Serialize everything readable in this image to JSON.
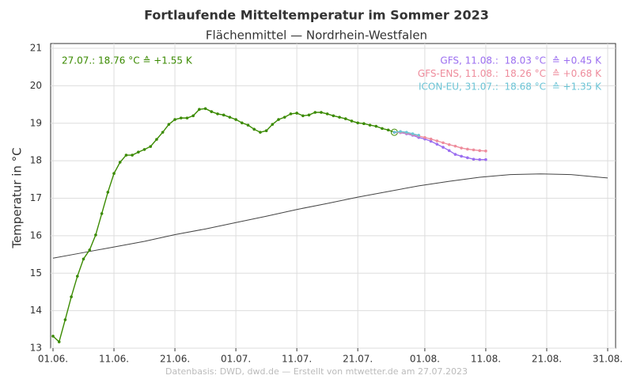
{
  "chart_data": {
    "type": "line",
    "title": "Fortlaufende Mitteltemperatur im Sommer 2023",
    "subtitle": "Flächenmittel — Nordrhein-Westfalen",
    "y_label": "Temperatur in °C",
    "footer": "Datenbasis: DWD, dwd.de — Erstellt von mtwetter.de am 27.07.2023",
    "xlim": [
      "01.06.",
      "31.08."
    ],
    "xticks": [
      "01.06.",
      "11.06.",
      "21.06.",
      "01.07.",
      "11.07.",
      "21.07.",
      "01.08.",
      "11.08.",
      "21.08.",
      "31.08."
    ],
    "ylim": [
      13,
      21
    ],
    "yticks": [
      13,
      14,
      15,
      16,
      17,
      18,
      19,
      20,
      21
    ],
    "grid": true,
    "series": [
      {
        "color": "#444444",
        "marker": false,
        "x": [
          "01.06.",
          "06.06.",
          "11.06.",
          "16.06.",
          "21.06.",
          "26.06.",
          "01.07.",
          "06.07.",
          "11.07.",
          "16.07.",
          "21.07.",
          "26.07.",
          "31.07.",
          "05.08.",
          "10.08.",
          "15.08.",
          "20.08.",
          "25.08.",
          "31.08."
        ],
        "values": [
          15.4,
          15.55,
          15.7,
          15.85,
          16.03,
          16.18,
          16.35,
          16.52,
          16.7,
          16.86,
          17.03,
          17.18,
          17.33,
          17.45,
          17.56,
          17.63,
          17.65,
          17.63,
          17.54
        ]
      },
      {
        "name": "27.07.: 18.76 °C ≙ +1.55 K",
        "color": "#3a8a00",
        "marker": true,
        "legend": "left",
        "x": [
          "01.06.",
          "02.06.",
          "03.06.",
          "04.06.",
          "05.06.",
          "06.06.",
          "07.06.",
          "08.06.",
          "09.06.",
          "10.06.",
          "11.06.",
          "12.06.",
          "13.06.",
          "14.06.",
          "15.06.",
          "16.06.",
          "17.06.",
          "18.06.",
          "19.06.",
          "20.06.",
          "21.06.",
          "22.06.",
          "23.06.",
          "24.06.",
          "25.06.",
          "26.06.",
          "27.06.",
          "28.06.",
          "29.06.",
          "30.06.",
          "01.07.",
          "02.07.",
          "03.07.",
          "04.07.",
          "05.07.",
          "06.07.",
          "07.07.",
          "08.07.",
          "09.07.",
          "10.07.",
          "11.07.",
          "12.07.",
          "13.07.",
          "14.07.",
          "15.07.",
          "16.07.",
          "17.07.",
          "18.07.",
          "19.07.",
          "20.07.",
          "21.07.",
          "22.07.",
          "23.07.",
          "24.07.",
          "25.07.",
          "26.07.",
          "27.07."
        ],
        "values": [
          13.32,
          13.17,
          13.76,
          14.37,
          14.92,
          15.38,
          15.62,
          16.02,
          16.59,
          17.16,
          17.66,
          17.96,
          18.15,
          18.15,
          18.23,
          18.3,
          18.38,
          18.57,
          18.76,
          18.97,
          19.1,
          19.14,
          19.14,
          19.2,
          19.37,
          19.39,
          19.31,
          19.25,
          19.22,
          19.16,
          19.1,
          19.01,
          18.95,
          18.84,
          18.76,
          18.8,
          18.97,
          19.1,
          19.16,
          19.25,
          19.27,
          19.2,
          19.22,
          19.29,
          19.29,
          19.25,
          19.2,
          19.16,
          19.12,
          19.06,
          19.01,
          18.99,
          18.95,
          18.92,
          18.86,
          18.82,
          18.76
        ]
      },
      {
        "name": "GFS, 11.08.:  18.03 °C  ≙ +0.45 K",
        "color": "#9b6ef0",
        "marker": true,
        "legend": "right",
        "x": [
          "27.07.",
          "28.07.",
          "29.07.",
          "30.07.",
          "31.07.",
          "01.08.",
          "02.08.",
          "03.08.",
          "04.08.",
          "05.08.",
          "06.08.",
          "07.08.",
          "08.08.",
          "09.08.",
          "10.08.",
          "11.08."
        ],
        "values": [
          18.76,
          18.75,
          18.72,
          18.68,
          18.62,
          18.58,
          18.52,
          18.44,
          18.36,
          18.27,
          18.17,
          18.12,
          18.08,
          18.04,
          18.03,
          18.03
        ]
      },
      {
        "name": "GFS-ENS, 11.08.:  18.26 °C  ≙ +0.68 K",
        "color": "#ee8c9c",
        "marker": true,
        "legend": "right",
        "x": [
          "27.07.",
          "28.07.",
          "29.07.",
          "30.07.",
          "31.07.",
          "01.08.",
          "02.08.",
          "03.08.",
          "04.08.",
          "05.08.",
          "06.08.",
          "07.08.",
          "08.08.",
          "09.08.",
          "10.08.",
          "11.08."
        ],
        "values": [
          18.76,
          18.76,
          18.74,
          18.7,
          18.66,
          18.62,
          18.58,
          18.53,
          18.48,
          18.43,
          18.39,
          18.34,
          18.31,
          18.29,
          18.27,
          18.26
        ]
      },
      {
        "name": "ICON-EU, 31.07.:  18.68 °C  ≙ +1.35 K",
        "color": "#6cc4d6",
        "marker": true,
        "legend": "right",
        "x": [
          "27.07.",
          "28.07.",
          "29.07.",
          "30.07.",
          "31.07."
        ],
        "values": [
          18.76,
          18.78,
          18.76,
          18.72,
          18.68
        ]
      }
    ]
  }
}
